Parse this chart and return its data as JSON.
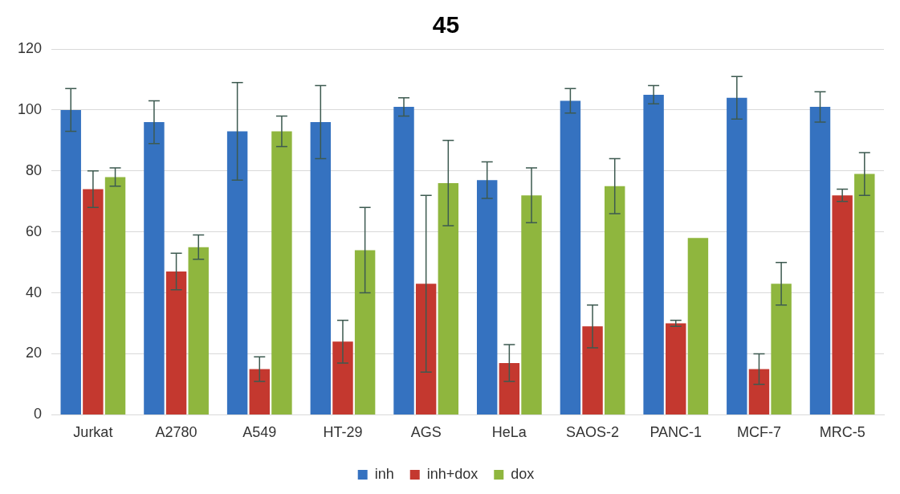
{
  "chart_data": {
    "type": "bar",
    "title": "45",
    "categories": [
      "Jurkat",
      "A2780",
      "A549",
      "HT-29",
      "AGS",
      "HeLa",
      "SAOS-2",
      "PANC-1",
      "MCF-7",
      "MRC-5"
    ],
    "series": [
      {
        "name": "inh",
        "color": "#3572c0",
        "values": [
          100,
          96,
          93,
          96,
          101,
          77,
          103,
          105,
          104,
          101
        ],
        "errors": [
          7,
          7,
          16,
          12,
          3,
          6,
          4,
          3,
          7,
          5
        ]
      },
      {
        "name": "inh+dox",
        "color": "#c4382f",
        "values": [
          74,
          47,
          15,
          24,
          43,
          17,
          29,
          30,
          15,
          72
        ],
        "errors": [
          6,
          6,
          4,
          7,
          29,
          6,
          7,
          1,
          5,
          2
        ]
      },
      {
        "name": "dox",
        "color": "#8fb63e",
        "values": [
          78,
          55,
          93,
          54,
          76,
          72,
          75,
          58,
          43,
          79
        ],
        "errors": [
          3,
          4,
          5,
          14,
          14,
          9,
          9,
          null,
          7,
          7
        ]
      }
    ],
    "ylim": [
      0,
      120
    ],
    "yticks": [
      0,
      20,
      40,
      60,
      80,
      100,
      120
    ],
    "grid": "y",
    "legend": "bottom"
  }
}
